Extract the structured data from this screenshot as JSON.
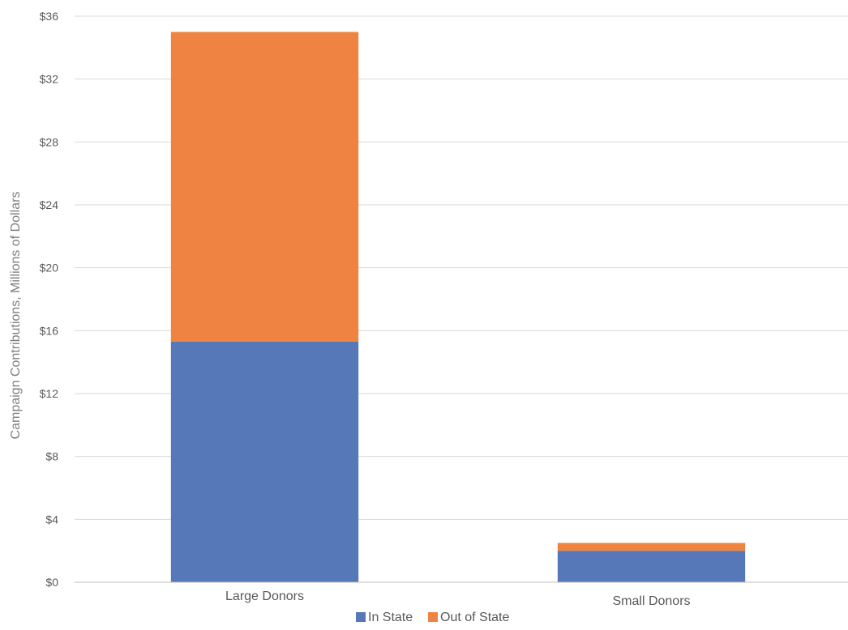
{
  "chart_data": {
    "type": "bar",
    "stacked": true,
    "categories": [
      "Large Donors",
      "Small Donors"
    ],
    "series": [
      {
        "name": "In State",
        "values": [
          15.3,
          2.0
        ],
        "color": "#5677b8"
      },
      {
        "name": "Out of State",
        "values": [
          19.7,
          0.5
        ],
        "color": "#ef8442"
      }
    ],
    "ylabel": "Campaign Contributions, Millions of Dollars",
    "ylim": [
      0,
      36
    ],
    "yticks": [
      0,
      4,
      8,
      12,
      16,
      20,
      24,
      28,
      32,
      36
    ],
    "ytick_labels": [
      "$0",
      "$4",
      "$8",
      "$12",
      "$16",
      "$20",
      "$24",
      "$28",
      "$32",
      "$36"
    ],
    "grid": true,
    "legend_position": "bottom"
  }
}
